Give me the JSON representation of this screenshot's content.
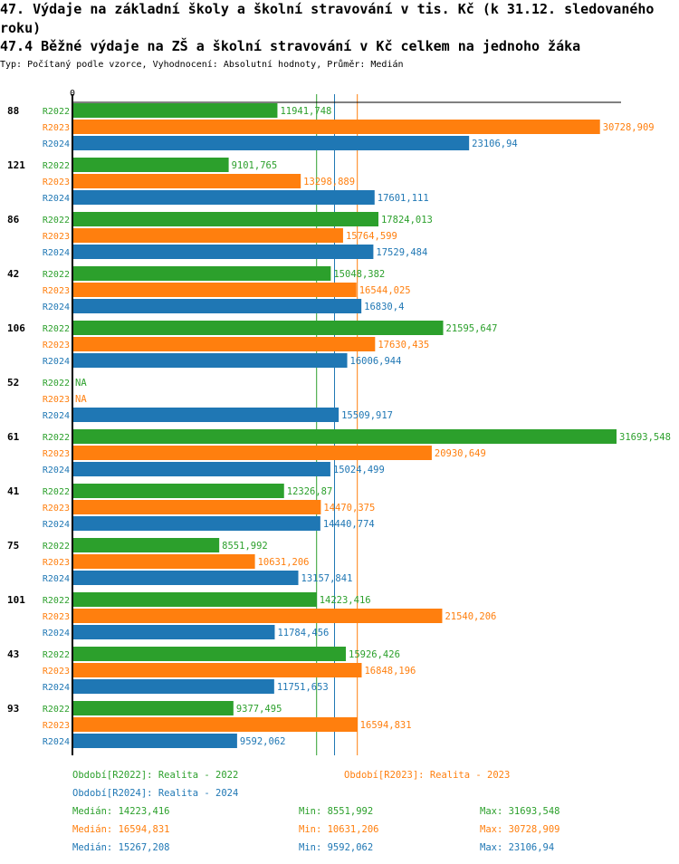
{
  "title": "47. Výdaje na základní školy a školní stravování v tis. Kč (k 31.12. sledovaného roku)",
  "subtitle": "47.4 Běžné výdaje na ZŠ a školní stravování v Kč celkem na jednoho žáka",
  "meta": "Typ: Počítaný podle vzorce, Vyhodnocení: Absolutní hodnoty, Průměr: Medián",
  "chart_data": {
    "type": "bar",
    "orientation": "horizontal",
    "xlim": [
      0,
      32000
    ],
    "zero_label": "0",
    "categories": [
      "88",
      "121",
      "86",
      "42",
      "106",
      "52",
      "61",
      "41",
      "75",
      "101",
      "43",
      "93"
    ],
    "series": [
      {
        "name": "R2022",
        "color": "#2ca02c",
        "values": [
          11941.748,
          9101.765,
          17824.013,
          15048.382,
          21595.647,
          null,
          31693.548,
          12326.87,
          8551.992,
          14223.416,
          15926.426,
          9377.495
        ],
        "labels": [
          "11941,748",
          "9101,765",
          "17824,013",
          "15048,382",
          "21595,647",
          "NA",
          "31693,548",
          "12326,87",
          "8551,992",
          "14223,416",
          "15926,426",
          "9377,495"
        ]
      },
      {
        "name": "R2023",
        "color": "#ff7f0e",
        "values": [
          30728.909,
          13298.889,
          15764.599,
          16544.025,
          17630.435,
          null,
          20930.649,
          14470.375,
          10631.206,
          21540.206,
          16848.196,
          16594.831
        ],
        "labels": [
          "30728,909",
          "13298,889",
          "15764,599",
          "16544,025",
          "17630,435",
          "NA",
          "20930,649",
          "14470,375",
          "10631,206",
          "21540,206",
          "16848,196",
          "16594,831"
        ]
      },
      {
        "name": "R2024",
        "color": "#1f77b4",
        "values": [
          23106.94,
          17601.111,
          17529.484,
          16830.4,
          16006.944,
          15509.917,
          15024.499,
          14440.774,
          13157.841,
          11784.456,
          11751.653,
          9592.062
        ],
        "labels": [
          "23106,94",
          "17601,111",
          "17529,484",
          "16830,4",
          "16006,944",
          "15509,917",
          "15024,499",
          "14440,774",
          "13157,841",
          "11784,456",
          "11751,653",
          "9592,062"
        ]
      }
    ],
    "median_lines": [
      14223.416,
      16594.831,
      15267.208
    ]
  },
  "legend": {
    "r2022": "Období[R2022]: Realita - 2022",
    "r2023": "Období[R2023]: Realita - 2023",
    "r2024": "Období[R2024]: Realita - 2024",
    "stats": [
      {
        "median": "Medián: 14223,416",
        "min": "Min: 8551,992",
        "max": "Max: 31693,548",
        "color": "#2ca02c"
      },
      {
        "median": "Medián: 16594,831",
        "min": "Min: 10631,206",
        "max": "Max: 30728,909",
        "color": "#ff7f0e"
      },
      {
        "median": "Medián: 15267,208",
        "min": "Min: 9592,062",
        "max": "Max: 23106,94",
        "color": "#1f77b4"
      }
    ]
  }
}
